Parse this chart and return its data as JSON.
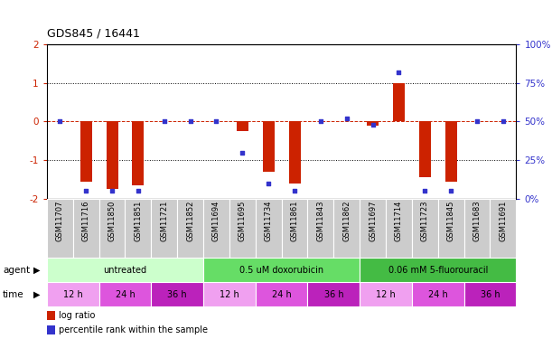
{
  "title": "GDS845 / 16441",
  "samples": [
    "GSM11707",
    "GSM11716",
    "GSM11850",
    "GSM11851",
    "GSM11721",
    "GSM11852",
    "GSM11694",
    "GSM11695",
    "GSM11734",
    "GSM11861",
    "GSM11843",
    "GSM11862",
    "GSM11697",
    "GSM11714",
    "GSM11723",
    "GSM11845",
    "GSM11683",
    "GSM11691"
  ],
  "log_ratio": [
    0,
    -1.55,
    -1.75,
    -1.65,
    0,
    0,
    0,
    -0.25,
    -1.3,
    -1.6,
    0,
    0,
    -0.1,
    1.0,
    -1.45,
    -1.55,
    0,
    0
  ],
  "percentile_rank": [
    50,
    5,
    5,
    5,
    50,
    50,
    50,
    30,
    10,
    5,
    50,
    52,
    48,
    82,
    5,
    5,
    50,
    50
  ],
  "ylim": [
    -2,
    2
  ],
  "y2lim": [
    0,
    100
  ],
  "y_ticks": [
    -2,
    -1,
    0,
    1,
    2
  ],
  "y2_ticks": [
    0,
    25,
    50,
    75,
    100
  ],
  "bar_color": "#cc2200",
  "dot_color": "#3333cc",
  "agent_groups": [
    {
      "label": "untreated",
      "start": 0,
      "end": 6,
      "color": "#ccffcc"
    },
    {
      "label": "0.5 uM doxorubicin",
      "start": 6,
      "end": 12,
      "color": "#66dd66"
    },
    {
      "label": "0.06 mM 5-fluorouracil",
      "start": 12,
      "end": 18,
      "color": "#44bb44"
    }
  ],
  "time_groups": [
    {
      "label": "12 h",
      "start": 0,
      "end": 2,
      "color": "#f0a0f0"
    },
    {
      "label": "24 h",
      "start": 2,
      "end": 4,
      "color": "#dd55dd"
    },
    {
      "label": "36 h",
      "start": 4,
      "end": 6,
      "color": "#bb22bb"
    },
    {
      "label": "12 h",
      "start": 6,
      "end": 8,
      "color": "#f0a0f0"
    },
    {
      "label": "24 h",
      "start": 8,
      "end": 10,
      "color": "#dd55dd"
    },
    {
      "label": "36 h",
      "start": 10,
      "end": 12,
      "color": "#bb22bb"
    },
    {
      "label": "12 h",
      "start": 12,
      "end": 14,
      "color": "#f0a0f0"
    },
    {
      "label": "24 h",
      "start": 14,
      "end": 16,
      "color": "#dd55dd"
    },
    {
      "label": "36 h",
      "start": 16,
      "end": 18,
      "color": "#bb22bb"
    }
  ],
  "bg_color": "#ffffff",
  "sample_bg": "#cccccc",
  "left_label_color": "#cc2200",
  "right_label_color": "#3333cc"
}
